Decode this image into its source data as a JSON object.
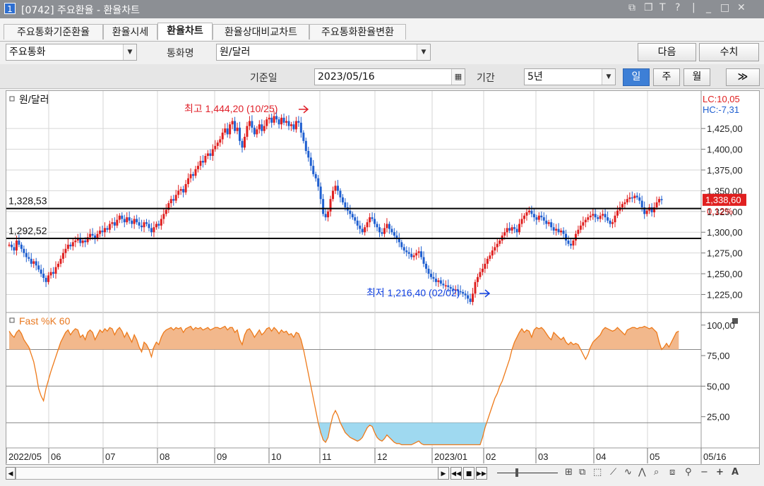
{
  "window": {
    "number": "1",
    "title": "[0742] 주요환율 - 환율차트"
  },
  "tabs": [
    {
      "label": "주요통화기준환율",
      "active": false
    },
    {
      "label": "환율시세",
      "active": false
    },
    {
      "label": "환율차트",
      "active": true
    },
    {
      "label": "환율상대비교차트",
      "active": false
    },
    {
      "label": "주요통화환율변환",
      "active": false
    }
  ],
  "filters": {
    "group_select": "주요통화",
    "currency_label": "통화명",
    "currency_select": "원/달러",
    "next_button": "다음",
    "values_button": "수치",
    "base_date_label": "기준일",
    "base_date": "2023/05/16",
    "period_label": "기간",
    "period_select": "5년",
    "interval_tabs": [
      {
        "label": "일",
        "active": true
      },
      {
        "label": "주",
        "active": false
      },
      {
        "label": "월",
        "active": false
      }
    ],
    "forward_button": "≫"
  },
  "chart_data": [
    {
      "type": "candlestick",
      "title": "원/달러",
      "indicators": {
        "LC": "LC:10,05",
        "HC": "HC:-7,31"
      },
      "y_ticks": [
        "1,425,00",
        "1,400,00",
        "1,375,00",
        "1,350,00",
        "1,325,00",
        "1,300,00",
        "1,275,00",
        "1,250,00",
        "1,225,00"
      ],
      "ylim": [
        1205,
        1460
      ],
      "x_ticks": [
        "2022/05",
        "06",
        "07",
        "08",
        "09",
        "10",
        "11",
        "12",
        "2023/01",
        "02",
        "03",
        "04",
        "05",
        "05/16"
      ],
      "current_price": "1,338,60",
      "current_change": "0,12%",
      "horizontal_lines": [
        {
          "label": "1,328,53",
          "value": 1328.53
        },
        {
          "label": "1,292,52",
          "value": 1292.52
        }
      ],
      "annotations": [
        {
          "text": "최고 1,444,20 (10/25)",
          "value": 1444.2,
          "color": "#e0202a"
        },
        {
          "text": "최저 1,216,40 (02/02)",
          "value": 1216.4,
          "color": "#1040e0"
        }
      ],
      "series_close": [
        1285,
        1282,
        1278,
        1290,
        1285,
        1280,
        1275,
        1270,
        1268,
        1262,
        1265,
        1260,
        1255,
        1250,
        1245,
        1240,
        1248,
        1252,
        1250,
        1258,
        1262,
        1268,
        1275,
        1280,
        1285,
        1283,
        1288,
        1290,
        1292,
        1287,
        1290,
        1288,
        1294,
        1298,
        1296,
        1292,
        1298,
        1302,
        1300,
        1305,
        1303,
        1310,
        1312,
        1308,
        1315,
        1320,
        1316,
        1312,
        1318,
        1314,
        1310,
        1316,
        1312,
        1308,
        1306,
        1312,
        1310,
        1305,
        1300,
        1306,
        1310,
        1308,
        1316,
        1322,
        1327,
        1335,
        1340,
        1338,
        1345,
        1350,
        1352,
        1348,
        1358,
        1365,
        1370,
        1368,
        1376,
        1380,
        1386,
        1384,
        1392,
        1395,
        1392,
        1400,
        1404,
        1408,
        1412,
        1420,
        1425,
        1418,
        1430,
        1434,
        1422,
        1426,
        1410,
        1402,
        1415,
        1428,
        1434,
        1426,
        1418,
        1424,
        1430,
        1422,
        1428,
        1436,
        1438,
        1432,
        1440,
        1436,
        1430,
        1438,
        1432,
        1434,
        1428,
        1430,
        1424,
        1434,
        1432,
        1420,
        1410,
        1398,
        1390,
        1380,
        1370,
        1365,
        1355,
        1340,
        1322,
        1318,
        1325,
        1340,
        1350,
        1356,
        1350,
        1342,
        1336,
        1330,
        1326,
        1322,
        1318,
        1314,
        1308,
        1304,
        1300,
        1306,
        1312,
        1318,
        1316,
        1310,
        1306,
        1300,
        1298,
        1305,
        1310,
        1304,
        1300,
        1296,
        1292,
        1288,
        1282,
        1278,
        1276,
        1274,
        1270,
        1272,
        1275,
        1277,
        1270,
        1262,
        1256,
        1250,
        1246,
        1244,
        1240,
        1242,
        1238,
        1236,
        1236,
        1234,
        1232,
        1230,
        1231,
        1229,
        1228,
        1226,
        1224,
        1220,
        1216,
        1226,
        1240,
        1246,
        1252,
        1256,
        1262,
        1268,
        1272,
        1278,
        1282,
        1286,
        1290,
        1296,
        1300,
        1305,
        1302,
        1306,
        1304,
        1300,
        1310,
        1316,
        1320,
        1324,
        1326,
        1322,
        1318,
        1315,
        1320,
        1318,
        1314,
        1310,
        1312,
        1306,
        1302,
        1304,
        1300,
        1302,
        1298,
        1290,
        1286,
        1284,
        1290,
        1298,
        1303,
        1308,
        1312,
        1315,
        1318,
        1320,
        1322,
        1318,
        1316,
        1320,
        1322,
        1318,
        1314,
        1310,
        1312,
        1320,
        1326,
        1330,
        1334,
        1336,
        1340,
        1342,
        1341,
        1344,
        1342,
        1338,
        1330,
        1322,
        1326,
        1330,
        1324,
        1330,
        1336,
        1340,
        1338.6
      ],
      "stochastic": {
        "title": "Fast %K 60",
        "y_ticks": [
          "100,00",
          "75,00",
          "50,00",
          "25,00"
        ],
        "ylim": [
          0,
          108
        ],
        "reference_lines": [
          80,
          50,
          20
        ],
        "values": [
          95,
          92,
          90,
          94,
          96,
          93,
          88,
          85,
          82,
          76,
          70,
          60,
          48,
          42,
          38,
          48,
          55,
          62,
          68,
          74,
          80,
          86,
          90,
          94,
          96,
          92,
          95,
          97,
          96,
          90,
          92,
          88,
          94,
          96,
          94,
          88,
          92,
          96,
          94,
          97,
          95,
          98,
          97,
          92,
          96,
          98,
          95,
          90,
          94,
          90,
          86,
          92,
          88,
          82,
          78,
          86,
          84,
          80,
          74,
          82,
          86,
          84,
          90,
          94,
          96,
          97,
          98,
          96,
          98,
          97,
          98,
          94,
          97,
          98,
          99,
          96,
          98,
          97,
          98,
          96,
          97,
          98,
          96,
          97,
          98,
          98,
          97,
          98,
          99,
          96,
          98,
          98,
          94,
          96,
          88,
          84,
          92,
          96,
          97,
          94,
          90,
          93,
          96,
          92,
          94,
          97,
          98,
          95,
          98,
          96,
          93,
          96,
          94,
          95,
          92,
          93,
          90,
          94,
          93,
          88,
          80,
          70,
          60,
          50,
          40,
          30,
          20,
          12,
          6,
          4,
          8,
          18,
          26,
          30,
          26,
          20,
          16,
          12,
          10,
          8,
          7,
          6,
          5,
          6,
          8,
          12,
          16,
          18,
          17,
          12,
          8,
          6,
          5,
          7,
          10,
          8,
          6,
          4,
          3,
          3,
          2,
          2,
          2,
          2,
          2,
          3,
          4,
          5,
          3,
          2,
          2,
          2,
          2,
          2,
          2,
          2,
          2,
          2,
          2,
          2,
          2,
          2,
          2,
          2,
          2,
          2,
          2,
          2,
          2,
          2,
          2,
          2,
          2,
          8,
          16,
          22,
          28,
          34,
          40,
          44,
          50,
          54,
          60,
          66,
          72,
          80,
          86,
          90,
          94,
          97,
          94,
          96,
          95,
          90,
          96,
          98,
          97,
          98,
          96,
          93,
          90,
          88,
          94,
          92,
          90,
          88,
          90,
          86,
          84,
          86,
          84,
          85,
          84,
          80,
          76,
          72,
          76,
          82,
          86,
          88,
          90,
          92,
          96,
          98,
          97,
          96,
          95,
          96,
          98,
          96,
          94,
          92,
          96,
          97,
          98,
          98,
          97,
          98,
          98,
          99,
          98,
          97,
          98,
          96,
          94,
          86,
          80,
          82,
          85,
          82,
          86,
          90,
          94,
          95
        ]
      }
    }
  ],
  "toolbar": {
    "playback": [
      "▶",
      "◀◀",
      "■",
      "▶▶"
    ],
    "tools": [
      "candle-icon",
      "bar-icon",
      "zoom-box-icon",
      "trend-line-icon",
      "cycle-line-icon",
      "wave-icon",
      "search-icon",
      "minus-icon",
      "plus-icon",
      "text-icon"
    ],
    "text_tool": "A"
  }
}
